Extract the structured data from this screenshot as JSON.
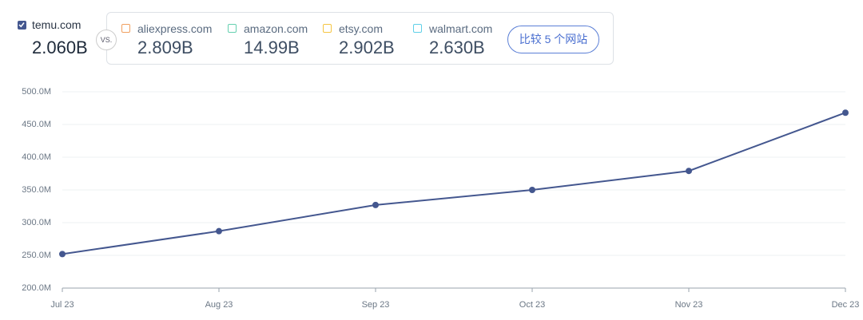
{
  "selector": {
    "primary": {
      "name": "temu.com",
      "value": "2.060B"
    },
    "vs": "VS.",
    "competitors": [
      {
        "name": "aliexpress.com",
        "value": "2.809B",
        "color": "#f0a060"
      },
      {
        "name": "amazon.com",
        "value": "14.99B",
        "color": "#66d0b0"
      },
      {
        "name": "etsy.com",
        "value": "2.902B",
        "color": "#f5c542"
      },
      {
        "name": "walmart.com",
        "value": "2.630B",
        "color": "#5fd0e8"
      }
    ],
    "button": "比较 5 个网站"
  },
  "chart_data": {
    "type": "line",
    "categories": [
      "Jul 23",
      "Aug 23",
      "Sep 23",
      "Oct 23",
      "Nov 23",
      "Dec 23"
    ],
    "values": [
      252000000,
      287000000,
      327000000,
      350000000,
      379000000,
      468000000
    ],
    "color": "#44578f",
    "ylim": [
      200000000,
      500000000
    ],
    "yticks": [
      {
        "value": 200000000,
        "label": "200.0M"
      },
      {
        "value": 250000000,
        "label": "250.0M"
      },
      {
        "value": 300000000,
        "label": "300.0M"
      },
      {
        "value": 350000000,
        "label": "350.0M"
      },
      {
        "value": 400000000,
        "label": "400.0M"
      },
      {
        "value": 450000000,
        "label": "450.0M"
      },
      {
        "value": 500000000,
        "label": "500.0M"
      }
    ],
    "grid": true
  }
}
